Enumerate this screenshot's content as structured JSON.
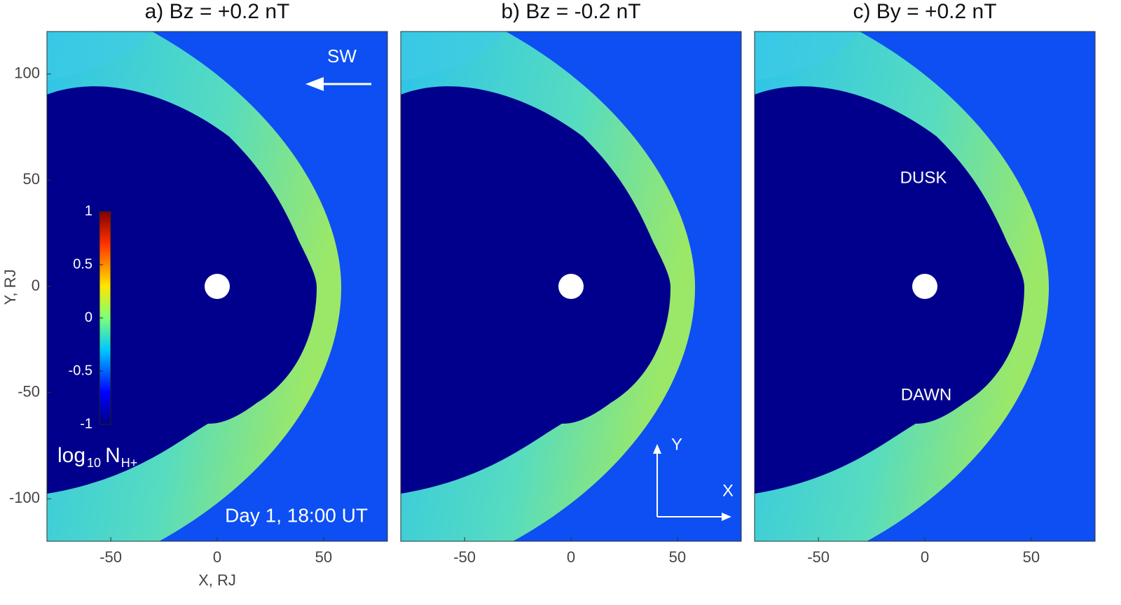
{
  "chart_data": [
    {
      "type": "heatmap",
      "title": "a) Bz = +0.2 nT",
      "xlim": [
        -80,
        80
      ],
      "ylim": [
        -120,
        120
      ],
      "xticks": [
        -50,
        0,
        50
      ],
      "yticks": [
        -100,
        -50,
        0,
        50,
        100
      ],
      "xlabel": "X, RJ",
      "ylabel": "Y, RJ",
      "annotations": [
        "SW",
        "Day 1, 18:00 UT"
      ],
      "colorbar": {
        "lim": [
          -1,
          1
        ],
        "ticks": [
          -1,
          -0.5,
          0,
          0.5,
          1
        ],
        "label": {
          "base": "log",
          "base_sub": "10",
          "quantity": "N",
          "quantity_sub": "H+"
        }
      }
    },
    {
      "type": "heatmap",
      "title": "b) Bz = -0.2 nT",
      "xlim": [
        -80,
        80
      ],
      "ylim": [
        -120,
        120
      ],
      "xticks": [
        -50,
        0,
        50
      ],
      "annotations": [
        "Y",
        "X"
      ]
    },
    {
      "type": "heatmap",
      "title": "c) By = +0.2 nT",
      "xlim": [
        -80,
        80
      ],
      "ylim": [
        -120,
        120
      ],
      "xticks": [
        -50,
        0,
        50
      ],
      "annotations": [
        "DUSK",
        "DAWN"
      ]
    }
  ]
}
